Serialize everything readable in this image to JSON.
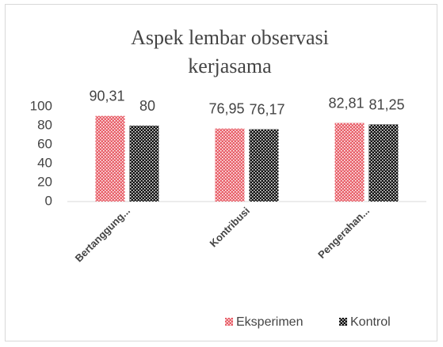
{
  "chart_data": {
    "type": "bar",
    "title": "Aspek lembar observasi kerjasama",
    "categories": [
      "Bertanggung...",
      "Kontribusi",
      "Pengerahan..."
    ],
    "series": [
      {
        "name": "Eksperimen",
        "color": "#e8606a",
        "values": [
          90.31,
          76.95,
          82.81
        ],
        "value_labels": [
          "90,31",
          "76,95",
          "82,81"
        ]
      },
      {
        "name": "Kontrol",
        "color": "#111111",
        "values": [
          80,
          76.17,
          81.25
        ],
        "value_labels": [
          "80",
          "76,17",
          "81,25"
        ]
      }
    ],
    "ylim": [
      0,
      100
    ],
    "yticks": [
      0,
      20,
      40,
      60,
      80,
      100
    ],
    "grid": false,
    "legend": "bottom"
  }
}
